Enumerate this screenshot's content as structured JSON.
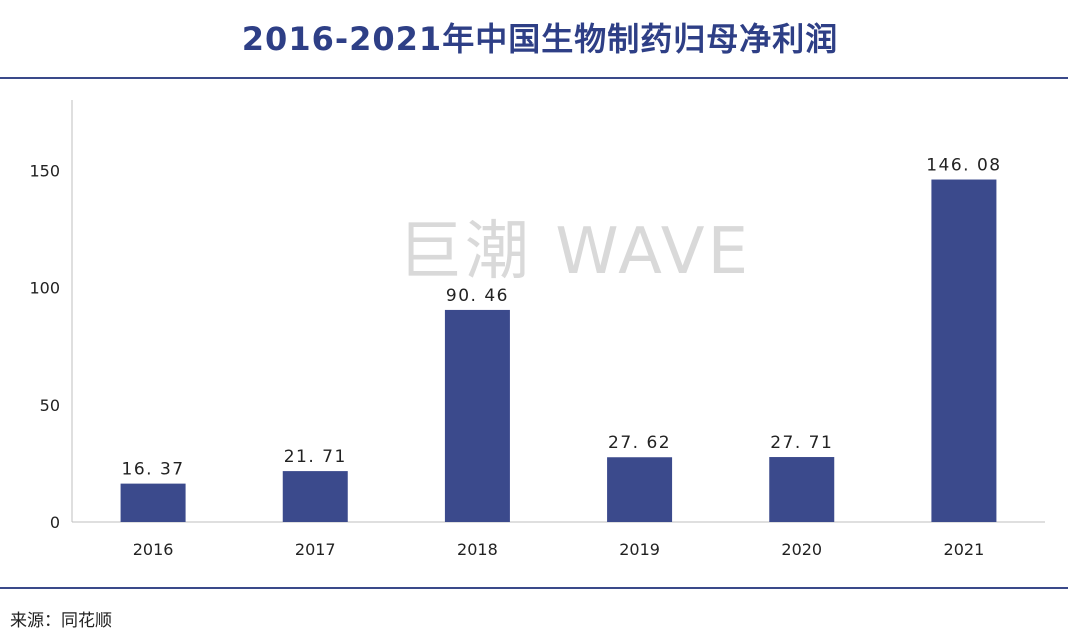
{
  "title": "2016-2021年中国生物制药归母净利润",
  "watermark": "巨潮 WAVE",
  "source": "来源：同花顺",
  "colors": {
    "bar": "#3b4a8c",
    "title": "#2e3f86",
    "rule": "#3a4a8a"
  },
  "chart_data": {
    "type": "bar",
    "title": "2016-2021年中国生物制药归母净利润",
    "categories": [
      "2016",
      "2017",
      "2018",
      "2019",
      "2020",
      "2021"
    ],
    "values": [
      16.37,
      21.71,
      90.46,
      27.62,
      27.71,
      146.08
    ],
    "value_labels": [
      "16. 37",
      "21. 71",
      "90. 46",
      "27. 62",
      "27. 71",
      "146. 08"
    ],
    "yticks": [
      0,
      50,
      100,
      150
    ],
    "ylim": [
      0,
      180
    ],
    "xlabel": "",
    "ylabel": "",
    "grid": false,
    "legend": "none"
  }
}
